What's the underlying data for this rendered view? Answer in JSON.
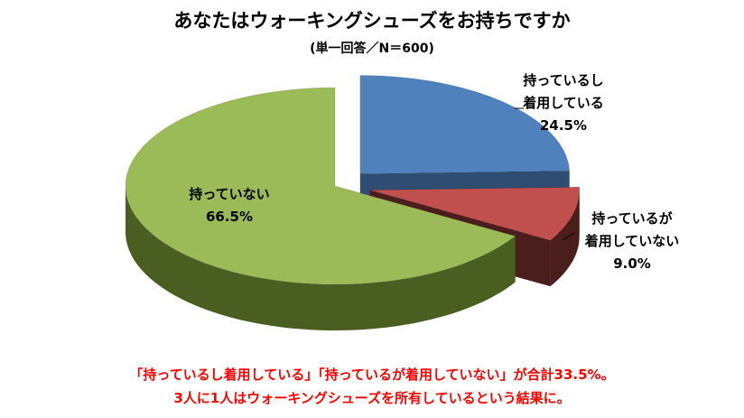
{
  "chart_data": {
    "type": "pie",
    "style": "3d-exploded",
    "title": "あなたはウォーキングシューズをお持ちですか",
    "subtitle": "(単一回答／N＝600)",
    "slices": [
      {
        "label_lines": [
          "持っているし",
          "着用している"
        ],
        "value": 24.5,
        "value_label": "24.5%",
        "color": "#4f81bd",
        "side_color": "#2f4d73",
        "exploded": true
      },
      {
        "label_lines": [
          "持っているが",
          "着用していない"
        ],
        "value": 9.0,
        "value_label": "9.0%",
        "color": "#c0504d",
        "side_color": "#4a1e1d",
        "exploded": true
      },
      {
        "label_lines": [
          "持っていない"
        ],
        "value": 66.5,
        "value_label": "66.5%",
        "color": "#9bbb59",
        "side_color": "#4a5e22",
        "exploded": false
      }
    ],
    "legend": "none"
  },
  "note": {
    "lines": [
      "「持っているし着用している」「持っているが着用していない」が合計33.5%。",
      "3人に1人はウォーキングシューズを所有しているという結果に。"
    ],
    "color": "#ff0000"
  }
}
